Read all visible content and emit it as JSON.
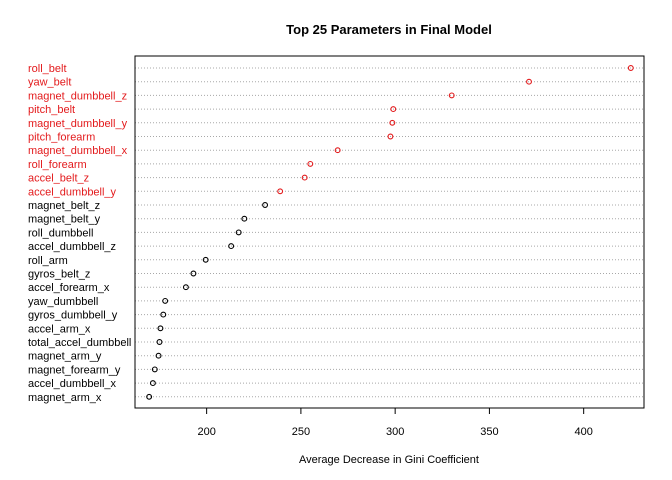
{
  "chart_data": {
    "type": "scatter",
    "subtype": "dotchart",
    "title": "Top 25 Parameters in Final Model",
    "xlabel": "Average Decrease in Gini Coefficient",
    "ylabel": "",
    "xlim": [
      162,
      432
    ],
    "xticks": [
      200,
      250,
      300,
      350,
      400
    ],
    "grid": "dotted horizontal",
    "colors": {
      "highlight": "#e31a1c",
      "normal": "#000000"
    },
    "items": [
      {
        "label": "roll_belt",
        "value": 425,
        "highlight": true
      },
      {
        "label": "yaw_belt",
        "value": 371,
        "highlight": true
      },
      {
        "label": "magnet_dumbbell_z",
        "value": 330,
        "highlight": true
      },
      {
        "label": "pitch_belt",
        "value": 299,
        "highlight": true
      },
      {
        "label": "magnet_dumbbell_y",
        "value": 298.5,
        "highlight": true
      },
      {
        "label": "pitch_forearm",
        "value": 297.5,
        "highlight": true
      },
      {
        "label": "magnet_dumbbell_x",
        "value": 269.5,
        "highlight": true
      },
      {
        "label": "roll_forearm",
        "value": 255,
        "highlight": true
      },
      {
        "label": "accel_belt_z",
        "value": 252,
        "highlight": true
      },
      {
        "label": "accel_dumbbell_y",
        "value": 239,
        "highlight": true
      },
      {
        "label": "magnet_belt_z",
        "value": 231,
        "highlight": false
      },
      {
        "label": "magnet_belt_y",
        "value": 220,
        "highlight": false
      },
      {
        "label": "roll_dumbbell",
        "value": 217,
        "highlight": false
      },
      {
        "label": "accel_dumbbell_z",
        "value": 213,
        "highlight": false
      },
      {
        "label": "roll_arm",
        "value": 199.5,
        "highlight": false
      },
      {
        "label": "gyros_belt_z",
        "value": 193,
        "highlight": false
      },
      {
        "label": "accel_forearm_x",
        "value": 189,
        "highlight": false
      },
      {
        "label": "yaw_dumbbell",
        "value": 178,
        "highlight": false
      },
      {
        "label": "gyros_dumbbell_y",
        "value": 177,
        "highlight": false
      },
      {
        "label": "accel_arm_x",
        "value": 175.5,
        "highlight": false
      },
      {
        "label": "total_accel_dumbbell",
        "value": 175,
        "highlight": false
      },
      {
        "label": "magnet_arm_y",
        "value": 174.5,
        "highlight": false
      },
      {
        "label": "magnet_forearm_y",
        "value": 172.5,
        "highlight": false
      },
      {
        "label": "accel_dumbbell_x",
        "value": 171.5,
        "highlight": false
      },
      {
        "label": "magnet_arm_x",
        "value": 169.5,
        "highlight": false
      }
    ]
  }
}
